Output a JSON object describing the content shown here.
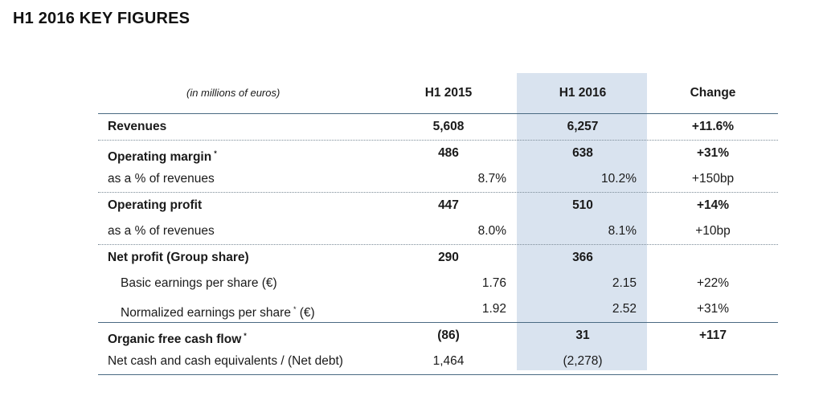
{
  "title": "H1 2016 KEY FIGURES",
  "table": {
    "header": {
      "unit_note": "(in millions of euros)",
      "col_h1_2015": "H1 2015",
      "col_h1_2016": "H1 2016",
      "col_change": "Change"
    },
    "rows": [
      {
        "label": "Revenues",
        "h1_2015": "5,608",
        "h1_2016": "6,257",
        "change": "+11.6%"
      },
      {
        "label": "Operating margin",
        "marker": "*",
        "h1_2015": "486",
        "h1_2016": "638",
        "change": "+31%"
      },
      {
        "label": "as a % of revenues",
        "h1_2015": "8.7%",
        "h1_2016": "10.2%",
        "change": "+150bp"
      },
      {
        "label": "Operating profit",
        "h1_2015": "447",
        "h1_2016": "510",
        "change": "+14%"
      },
      {
        "label": "as a % of revenues",
        "h1_2015": "8.0%",
        "h1_2016": "8.1%",
        "change": "+10bp"
      },
      {
        "label": "Net profit (Group share)",
        "h1_2015": "290",
        "h1_2016": "366",
        "change": ""
      },
      {
        "label": "Basic earnings per share (€)",
        "h1_2015": "1.76",
        "h1_2016": "2.15",
        "change": "+22%"
      },
      {
        "label": "Normalized earnings per share",
        "marker": "*",
        "label_suffix": "(€)",
        "h1_2015": "1.92",
        "h1_2016": "2.52",
        "change": "+31%"
      },
      {
        "label": "Organic free cash flow",
        "marker": "*",
        "h1_2015": "(86)",
        "h1_2016": "31",
        "change": "+117"
      },
      {
        "label": "Net cash and cash equivalents / (Net debt)",
        "h1_2015": "1,464",
        "h1_2016": "(2,278)",
        "change": ""
      }
    ]
  }
}
